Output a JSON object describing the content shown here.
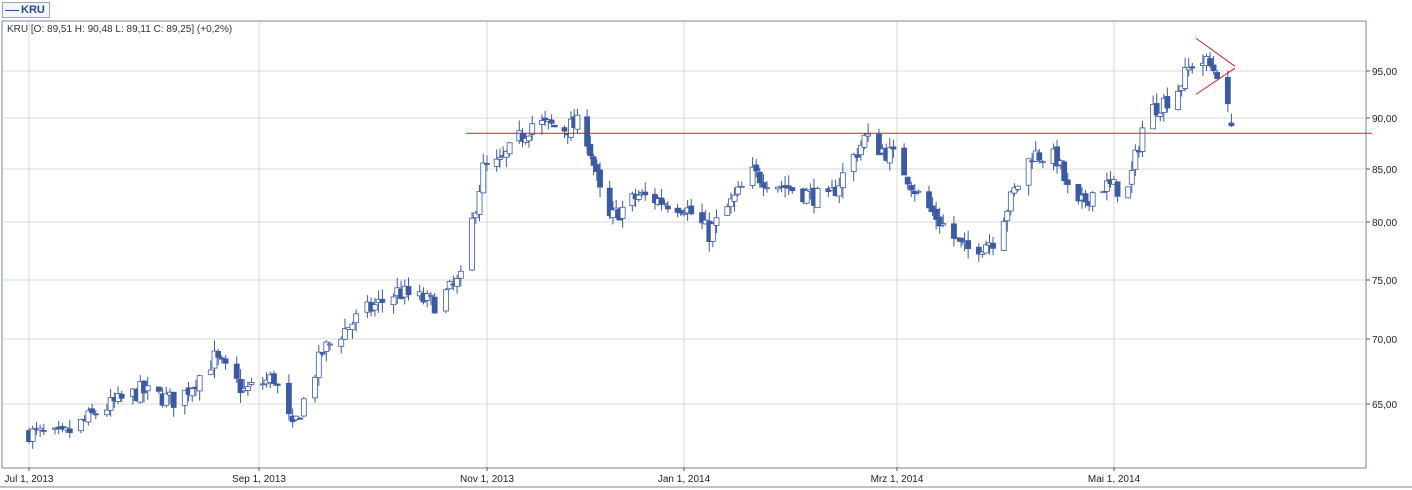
{
  "legend": {
    "symbol": "KRU"
  },
  "ohlc_label": "KRU [O: 89,51  H: 90,48  L: 89,11  C: 89,25] (+0,2%)",
  "colors": {
    "candle": "#3b5aa3",
    "trendline": "#cc2222",
    "grid": "#d8d8d8",
    "border": "#7a8699"
  },
  "chart_data": {
    "type": "candlestick",
    "symbol": "KRU",
    "last": {
      "open": 89.51,
      "high": 90.48,
      "low": 89.11,
      "close": 89.25,
      "change_pct": 0.2
    },
    "x_ticks": [
      "Jul 1, 2013",
      "Sep 1, 2013",
      "Nov 1, 2013",
      "Jan 1, 2014",
      "Mrz 1, 2014",
      "Mai 1, 2014"
    ],
    "y_ticks": [
      "65,00",
      "70,00",
      "75,00",
      "80,00",
      "85,00",
      "90,00",
      "95,00"
    ],
    "y_tick_values": [
      65,
      70,
      75,
      80,
      85,
      90,
      95
    ],
    "x_range": [
      "2013-07-01",
      "2014-06-03"
    ],
    "grid": true,
    "y_scale": "log",
    "close_path": [
      [
        "2013-07-01",
        62.8
      ],
      [
        "2013-07-10",
        62.5
      ],
      [
        "2013-07-20",
        64.5
      ],
      [
        "2013-07-31",
        66.0
      ],
      [
        "2013-08-10",
        65.2
      ],
      [
        "2013-08-20",
        68.5
      ],
      [
        "2013-08-28",
        66.0
      ],
      [
        "2013-09-05",
        67.0
      ],
      [
        "2013-09-10",
        63.0
      ],
      [
        "2013-09-18",
        69.0
      ],
      [
        "2013-09-28",
        72.0
      ],
      [
        "2013-10-08",
        74.0
      ],
      [
        "2013-10-18",
        73.0
      ],
      [
        "2013-10-25",
        75.0
      ],
      [
        "2013-10-31",
        85.0
      ],
      [
        "2013-11-05",
        85.5
      ],
      [
        "2013-11-15",
        89.5
      ],
      [
        "2013-11-25",
        89.0
      ],
      [
        "2013-12-01",
        89.5
      ],
      [
        "2013-12-08",
        80.0
      ],
      [
        "2013-12-18",
        82.5
      ],
      [
        "2014-01-01",
        81.5
      ],
      [
        "2014-01-08",
        79.0
      ],
      [
        "2014-01-20",
        84.5
      ],
      [
        "2014-02-01",
        83.0
      ],
      [
        "2014-02-10",
        82.0
      ],
      [
        "2014-02-20",
        88.0
      ],
      [
        "2014-03-01",
        86.0
      ],
      [
        "2014-03-08",
        82.0
      ],
      [
        "2014-03-20",
        77.5
      ],
      [
        "2014-03-28",
        78.5
      ],
      [
        "2014-04-08",
        86.5
      ],
      [
        "2014-04-15",
        86.0
      ],
      [
        "2014-04-20",
        81.0
      ],
      [
        "2014-04-27",
        83.5
      ],
      [
        "2014-05-05",
        83.0
      ],
      [
        "2014-05-10",
        90.5
      ],
      [
        "2014-05-18",
        92.5
      ],
      [
        "2014-05-24",
        96.5
      ],
      [
        "2014-05-30",
        95.0
      ],
      [
        "2014-06-03",
        89.25
      ]
    ],
    "annotations": [
      {
        "type": "horizontal_line",
        "value": 88.5
      },
      {
        "type": "trendline",
        "from": [
          "2014-05-24",
          98.5
        ],
        "to": [
          "2014-06-04",
          95.5
        ]
      },
      {
        "type": "trendline",
        "from": [
          "2014-05-24",
          92.5
        ],
        "to": [
          "2014-06-04",
          95.3
        ]
      }
    ]
  }
}
